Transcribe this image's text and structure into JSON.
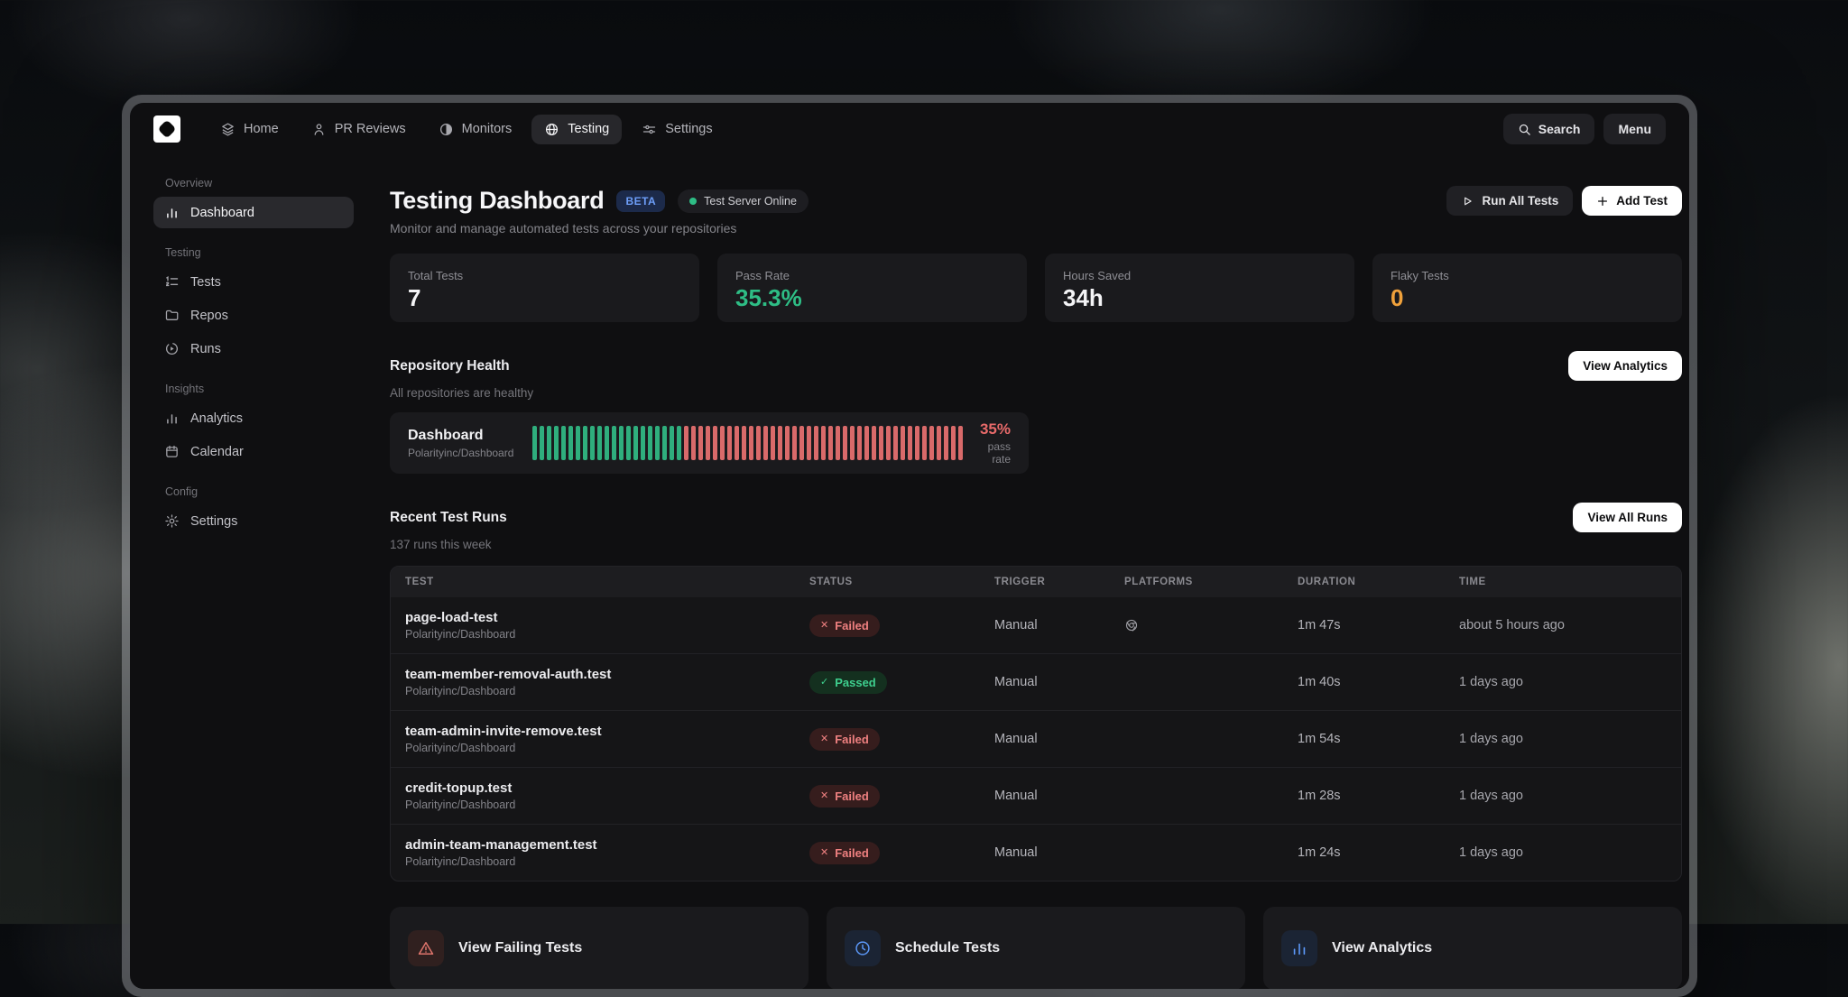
{
  "nav": {
    "items": [
      {
        "label": "Home",
        "icon": "layers-icon",
        "active": false
      },
      {
        "label": "PR Reviews",
        "icon": "user-icon",
        "active": false
      },
      {
        "label": "Monitors",
        "icon": "contrast-icon",
        "active": false
      },
      {
        "label": "Testing",
        "icon": "globe-icon",
        "active": true
      },
      {
        "label": "Settings",
        "icon": "sliders-icon",
        "active": false
      }
    ],
    "search_label": "Search",
    "menu_label": "Menu"
  },
  "sidebar": {
    "sections": [
      {
        "label": "Overview",
        "items": [
          {
            "label": "Dashboard",
            "icon": "bar-chart-icon",
            "active": true
          }
        ]
      },
      {
        "label": "Testing",
        "items": [
          {
            "label": "Tests",
            "icon": "ordered-list-icon",
            "active": false
          },
          {
            "label": "Repos",
            "icon": "folder-icon",
            "active": false
          },
          {
            "label": "Runs",
            "icon": "play-circle-icon",
            "active": false
          }
        ]
      },
      {
        "label": "Insights",
        "items": [
          {
            "label": "Analytics",
            "icon": "bar-chart-icon",
            "active": false
          },
          {
            "label": "Calendar",
            "icon": "calendar-icon",
            "active": false
          }
        ]
      },
      {
        "label": "Config",
        "items": [
          {
            "label": "Settings",
            "icon": "gear-icon",
            "active": false
          }
        ]
      }
    ]
  },
  "header": {
    "title": "Testing Dashboard",
    "badge": "BETA",
    "server_status": "Test Server Online",
    "subtitle": "Monitor and manage automated tests across your repositories",
    "run_all_label": "Run All Tests",
    "add_test_label": "Add Test"
  },
  "stats": [
    {
      "label": "Total Tests",
      "value": "7",
      "color": "#f4f4f6"
    },
    {
      "label": "Pass Rate",
      "value": "35.3%",
      "color": "#2ebd85"
    },
    {
      "label": "Hours Saved",
      "value": "34h",
      "color": "#f4f4f6"
    },
    {
      "label": "Flaky Tests",
      "value": "0",
      "color": "#f0a13b"
    }
  ],
  "repo_health": {
    "title": "Repository Health",
    "subtitle": "All repositories are healthy",
    "view_analytics_label": "View Analytics",
    "repo_name": "Dashboard",
    "repo_full": "Polarityinc/Dashboard",
    "pass_pct": "35%",
    "pass_caption": "pass rate",
    "pct_color": "#e86a6a",
    "chart": {
      "type": "bar",
      "bars_total": 60,
      "bars_passed": 21,
      "pass_color": "#2fae7d",
      "fail_color": "#d96a6a"
    }
  },
  "recent_runs": {
    "title": "Recent Test Runs",
    "subtitle": "137 runs this week",
    "view_all_label": "View All Runs",
    "columns": [
      "TEST",
      "STATUS",
      "TRIGGER",
      "PLATFORMS",
      "DURATION",
      "TIME"
    ],
    "rows": [
      {
        "test": "page-load-test",
        "repo": "Polarityinc/Dashboard",
        "status": "Failed",
        "trigger": "Manual",
        "platform": "chrome",
        "duration": "1m 47s",
        "time": "about 5 hours ago"
      },
      {
        "test": "team-member-removal-auth.test",
        "repo": "Polarityinc/Dashboard",
        "status": "Passed",
        "trigger": "Manual",
        "platform": "",
        "duration": "1m 40s",
        "time": "1 days ago"
      },
      {
        "test": "team-admin-invite-remove.test",
        "repo": "Polarityinc/Dashboard",
        "status": "Failed",
        "trigger": "Manual",
        "platform": "",
        "duration": "1m 54s",
        "time": "1 days ago"
      },
      {
        "test": "credit-topup.test",
        "repo": "Polarityinc/Dashboard",
        "status": "Failed",
        "trigger": "Manual",
        "platform": "",
        "duration": "1m 28s",
        "time": "1 days ago"
      },
      {
        "test": "admin-team-management.test",
        "repo": "Polarityinc/Dashboard",
        "status": "Failed",
        "trigger": "Manual",
        "platform": "",
        "duration": "1m 24s",
        "time": "1 days ago"
      }
    ]
  },
  "quick_actions": [
    {
      "label": "View Failing Tests",
      "icon": "warning-icon",
      "accent": "#e0756c",
      "icon_bg": "#30201f"
    },
    {
      "label": "Schedule Tests",
      "icon": "clock-icon",
      "accent": "#5b96f5",
      "icon_bg": "#1b2434"
    },
    {
      "label": "View Analytics",
      "icon": "analytics-icon",
      "accent": "#5b96f5",
      "icon_bg": "#1b2434"
    }
  ]
}
